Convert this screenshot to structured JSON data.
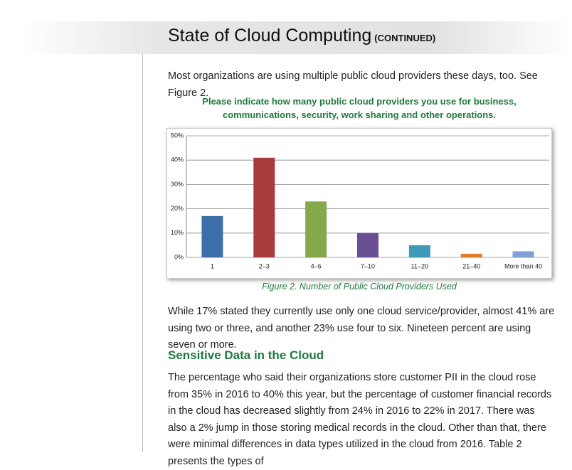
{
  "header": {
    "title": "State of Cloud Computing",
    "continued": "(CONTINUED)"
  },
  "intro": "Most organizations are using multiple public cloud providers these days, too. See Figure 2.",
  "figure": {
    "question": "Please indicate how many public cloud providers you use for business, communications, security, work sharing and other operations.",
    "caption": "Figure 2. Number of Public Cloud Providers Used",
    "chart_data": {
      "type": "bar",
      "categories": [
        "1",
        "2–3",
        "4–6",
        "7–10",
        "11–20",
        "21–40",
        "More than 40"
      ],
      "values": [
        17,
        41,
        23,
        10,
        5,
        1.5,
        2.5
      ],
      "colors": [
        "#3c6ea8",
        "#a83c3c",
        "#84a84a",
        "#6a4f94",
        "#3d9ab8",
        "#e07c2c",
        "#7ea2d6"
      ],
      "ylim": [
        0,
        50
      ],
      "yticks": [
        {
          "value": 0,
          "label": "0%"
        },
        {
          "value": 10,
          "label": "10%"
        },
        {
          "value": 20,
          "label": "20%"
        },
        {
          "value": 30,
          "label": "30%"
        },
        {
          "value": 40,
          "label": "40%"
        },
        {
          "value": 50,
          "label": "50%"
        }
      ],
      "grid": true
    }
  },
  "paragraph": "While 17% stated they currently use only one cloud service/provider, almost 41% are using two or three, and another 23% use four to six. Nineteen percent are using seven or more.",
  "section": {
    "heading": "Sensitive Data in the Cloud",
    "text": "The percentage who said their organizations store customer PII in the cloud rose from 35% in 2016 to 40% this year, but the percentage of customer financial records in the cloud has decreased slightly from 24% in 2016 to 22% in 2017. There was also a 2% jump in those storing medical records in the cloud. Other than that, there were minimal differences in data types utilized in the cloud from 2016. Table 2 presents the types of"
  }
}
